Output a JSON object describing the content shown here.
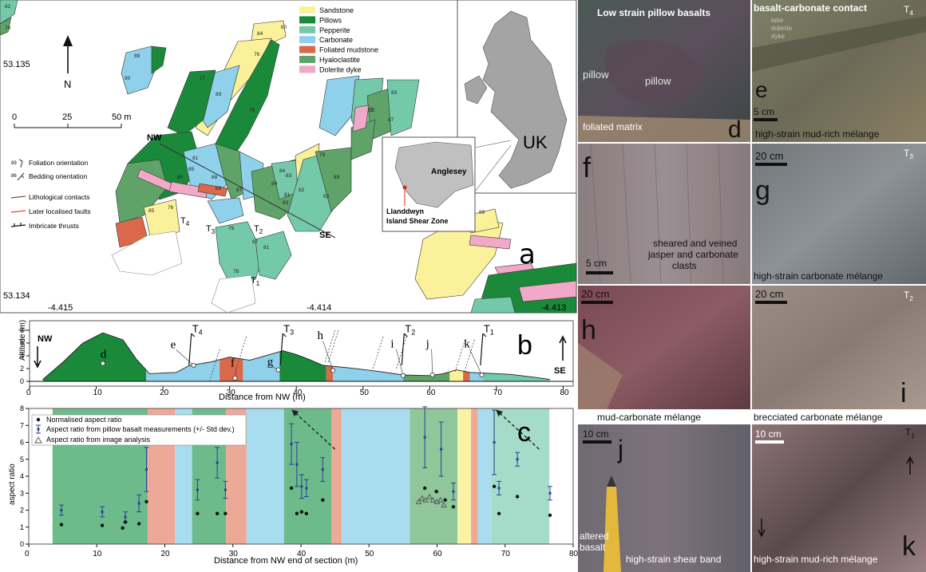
{
  "map": {
    "letter": "a",
    "legend": [
      {
        "label": "Sandstone",
        "color": "#fbf19a"
      },
      {
        "label": "Pillows",
        "color": "#1a8a3a"
      },
      {
        "label": "Pepperite",
        "color": "#74c9aa"
      },
      {
        "label": "Carbonate",
        "color": "#8fd1ea"
      },
      {
        "label": "Foliated mudstone",
        "color": "#d9694a"
      },
      {
        "label": "Hyaloclastite",
        "color": "#5fa368"
      },
      {
        "label": "Dolerite dyke",
        "color": "#f2a8c8"
      }
    ],
    "symbols": [
      {
        "label": "Foliation orientation",
        "value": "89"
      },
      {
        "label": "Bedding orientation",
        "value": "86"
      },
      {
        "label": "Lithological contacts"
      },
      {
        "label": "Later localised faults"
      },
      {
        "label": "Imbricate thrusts"
      }
    ],
    "north": "N",
    "scale": {
      "ticks": [
        "0",
        "25",
        "50 m"
      ]
    },
    "coords": {
      "lat_top": "53.135",
      "lat_bottom": "53.134",
      "lon_left": "-4.415",
      "lon_mid": "-4.414",
      "lon_right": "-4.413"
    },
    "section_labels": {
      "nw": "NW",
      "se": "SE",
      "t1": "T",
      "t2": "T",
      "t3": "T",
      "t4": "T"
    },
    "measurements": [
      "82",
      "79",
      "60",
      "84",
      "89",
      "90",
      "76",
      "77",
      "89",
      "78",
      "72",
      "83",
      "87",
      "81",
      "85",
      "80",
      "88",
      "76",
      "85",
      "89",
      "87",
      "84",
      "83",
      "81",
      "84",
      "83",
      "82",
      "79",
      "89",
      "83",
      "87",
      "81",
      "78",
      "76",
      "75",
      "89"
    ],
    "inset": {
      "island": "Anglesey",
      "site": "Llanddwyn Island Shear Zone",
      "country": "UK"
    }
  },
  "section": {
    "letter": "b",
    "ylabel": "Altitude (m)",
    "xlabel": "Distance from NW (m)",
    "yticks": [
      "0",
      "2",
      "4",
      "6",
      "8"
    ],
    "xticks": [
      "0",
      "10",
      "20",
      "30",
      "40",
      "50",
      "60",
      "70",
      "80"
    ],
    "nw": "NW",
    "se": "SE",
    "points": [
      "d",
      "e",
      "f",
      "g",
      "h",
      "i",
      "j",
      "k"
    ],
    "thrusts": [
      {
        "t": "T",
        "sub": "4"
      },
      {
        "t": "T",
        "sub": "3"
      },
      {
        "t": "T",
        "sub": "2"
      },
      {
        "t": "T",
        "sub": "1"
      }
    ]
  },
  "chart_data": {
    "type": "scatter",
    "letter": "c",
    "xlabel": "Distance from NW end of section (m)",
    "ylabel": "aspect ratio",
    "xlim": [
      0,
      80
    ],
    "ylim": [
      0,
      8
    ],
    "xticks": [
      "0",
      "10",
      "20",
      "30",
      "40",
      "50",
      "60",
      "70",
      "80"
    ],
    "yticks": [
      "0",
      "1",
      "2",
      "3",
      "4",
      "5",
      "6",
      "7",
      "8"
    ],
    "legend_labels": [
      "Normalised aspect ratio",
      "Aspect ratio from pillow basalt measurements (+/- Std dev.)",
      "Aspect ratio from image analysis"
    ],
    "bands": [
      {
        "from": 3.5,
        "to": 17.5,
        "color": "#6dbb8a"
      },
      {
        "from": 17.5,
        "to": 21.5,
        "color": "#eea996"
      },
      {
        "from": 21.5,
        "to": 24,
        "color": "#a9dcef"
      },
      {
        "from": 24,
        "to": 29,
        "color": "#6dbb8a"
      },
      {
        "from": 29,
        "to": 32,
        "color": "#eea996"
      },
      {
        "from": 32,
        "to": 37.5,
        "color": "#a9dcef"
      },
      {
        "from": 37.5,
        "to": 44.5,
        "color": "#6dbb8a"
      },
      {
        "from": 44.5,
        "to": 46,
        "color": "#eea996"
      },
      {
        "from": 46,
        "to": 56,
        "color": "#a9dcef"
      },
      {
        "from": 56,
        "to": 63,
        "color": "#8fc79a"
      },
      {
        "from": 63,
        "to": 65,
        "color": "#fbf2a8"
      },
      {
        "from": 65,
        "to": 66,
        "color": "#eea996"
      },
      {
        "from": 66,
        "to": 68,
        "color": "#a9dcef"
      },
      {
        "from": 68,
        "to": 76.5,
        "color": "#a5dcc9"
      }
    ],
    "series": [
      {
        "marker": "dot",
        "x": [
          4.8,
          10.8,
          13.8,
          14.2,
          16.2,
          17.3,
          24.8,
          27.7,
          28.9,
          38.6,
          39.4,
          40.1,
          40.8,
          43.2,
          58.2,
          59.9,
          61.2,
          62.4,
          68.4,
          69.1,
          71.8,
          76.6
        ],
        "y": [
          1.15,
          1.1,
          0.95,
          1.3,
          1.2,
          2.5,
          1.8,
          1.8,
          1.8,
          3.3,
          1.8,
          1.9,
          1.8,
          2.6,
          3.3,
          3.1,
          2.6,
          2.2,
          3.4,
          1.8,
          2.8,
          1.7
        ]
      },
      {
        "marker": "errorbar",
        "x": [
          4.8,
          10.8,
          14.2,
          16.2,
          17.3,
          24.8,
          27.7,
          28.9,
          38.6,
          39.4,
          40.1,
          40.8,
          43.2,
          58.2,
          60.6,
          62.4,
          68.4,
          69.1,
          71.8,
          76.6
        ],
        "y": [
          2.0,
          1.9,
          1.6,
          2.4,
          4.4,
          3.2,
          4.8,
          3.2,
          5.9,
          4.7,
          3.4,
          3.3,
          4.4,
          6.3,
          5.6,
          3.1,
          6.0,
          3.3,
          5.0,
          3.0
        ],
        "err": [
          0.3,
          0.3,
          0.3,
          0.5,
          1.3,
          0.6,
          0.9,
          0.5,
          1.2,
          1.3,
          0.7,
          0.5,
          0.7,
          1.8,
          1.6,
          0.5,
          1.9,
          0.4,
          0.4,
          0.4
        ]
      },
      {
        "marker": "triangle",
        "x": [
          57.3,
          57.8,
          58.3,
          58.9,
          59.4,
          60.0,
          60.5,
          61.0
        ],
        "y": [
          2.5,
          2.7,
          2.6,
          2.8,
          2.6,
          2.5,
          2.6,
          2.3
        ]
      }
    ],
    "arrows": [
      {
        "x0": 45,
        "y0": 5.6,
        "x1": 39,
        "y1": 7.8
      },
      {
        "x0": 75,
        "y0": 5.6,
        "x1": 69,
        "y1": 7.8
      }
    ]
  },
  "photos": {
    "d": {
      "letter": "d",
      "caption": "Low strain pillow basalts",
      "labels": [
        "pillow",
        "pillow",
        "foliated matrix"
      ]
    },
    "e": {
      "letter": "e",
      "caption": "basalt-carbonate contact",
      "t": "T",
      "sub": "4",
      "scale": "5 cm",
      "bottom": "high-strain mud-rich mélange",
      "faint": [
        "later",
        "dolerite",
        "dyke"
      ]
    },
    "f": {
      "letter": "f",
      "scale": "5 cm",
      "label": [
        "sheared and veined",
        "jasper and carbonate",
        "clasts"
      ]
    },
    "g": {
      "letter": "g",
      "t": "T",
      "sub": "3",
      "scale": "20 cm",
      "bottom": "high-strain carbonate mélange"
    },
    "h": {
      "letter": "h",
      "scale": "20 cm",
      "bottom": "mud-carbonate mélange"
    },
    "i": {
      "letter": "i",
      "t": "T",
      "sub": "2",
      "scale": "20 cm",
      "bottom": "brecciated carbonate mélange"
    },
    "j": {
      "letter": "j",
      "scale": "10 cm",
      "label": [
        "altered",
        "basalt"
      ],
      "bottom": "high-strain shear band"
    },
    "k": {
      "letter": "k",
      "t": "T",
      "sub": "1",
      "scale": "10 cm",
      "bottom": "high-strain mud-rich mélange"
    }
  }
}
